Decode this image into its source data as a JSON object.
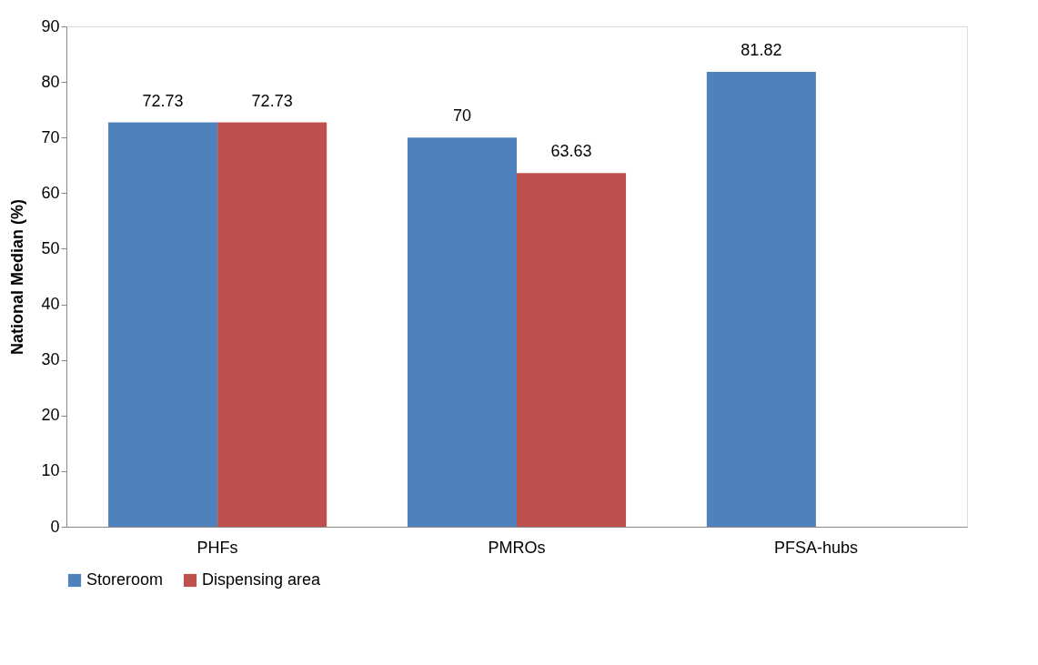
{
  "chart_data": {
    "type": "bar",
    "ylabel": "National Median (%)",
    "categories": [
      "PHFs",
      "PMROs",
      "PFSA-hubs"
    ],
    "series": [
      {
        "name": "Storeroom",
        "color": "#4f81bd",
        "values": [
          72.73,
          70,
          81.82
        ]
      },
      {
        "name": "Dispensing area",
        "color": "#c0504d",
        "values": [
          72.73,
          63.63,
          null
        ]
      }
    ],
    "ylim": [
      0,
      90
    ],
    "yticks": [
      0,
      10,
      20,
      30,
      40,
      50,
      60,
      70,
      80,
      90
    ],
    "data_labels": true,
    "grid": false,
    "legend": "bottom"
  }
}
